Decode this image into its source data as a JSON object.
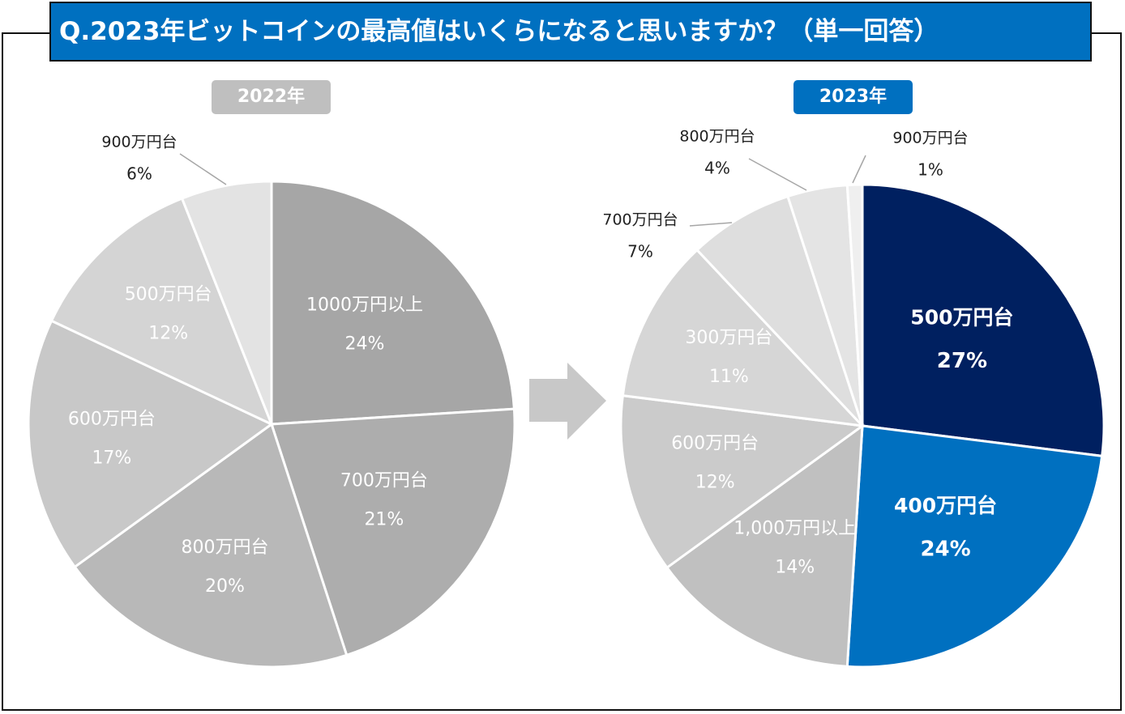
{
  "title": "Q.2023年ビットコインの最高値はいくらになると思いますか？（単一回答）",
  "chart_data": [
    {
      "type": "pie",
      "title": "2022年",
      "header_color": "#bfbfbf",
      "slices": [
        {
          "label": "1000万円以上",
          "value": 24,
          "value_label": "24%",
          "color": "#a6a6a6",
          "label_color": "#ffffff",
          "bold": false
        },
        {
          "label": "700万円台",
          "value": 21,
          "value_label": "21%",
          "color": "#adadad",
          "label_color": "#ffffff",
          "bold": false
        },
        {
          "label": "800万円台",
          "value": 20,
          "value_label": "20%",
          "color": "#b8b8b8",
          "label_color": "#ffffff",
          "bold": false
        },
        {
          "label": "600万円台",
          "value": 17,
          "value_label": "17%",
          "color": "#c8c8c8",
          "label_color": "#ffffff",
          "bold": false
        },
        {
          "label": "500万円台",
          "value": 12,
          "value_label": "12%",
          "color": "#d4d4d4",
          "label_color": "#ffffff",
          "bold": false
        },
        {
          "label": "900万円台",
          "value": 6,
          "value_label": "6%",
          "color": "#e3e3e3",
          "label_color": "#222222",
          "bold": false,
          "outside": true
        }
      ]
    },
    {
      "type": "pie",
      "title": "2023年",
      "header_color": "#0070c0",
      "slices": [
        {
          "label": "500万円台",
          "value": 27,
          "value_label": "27%",
          "color": "#002060",
          "label_color": "#ffffff",
          "bold": true
        },
        {
          "label": "400万円台",
          "value": 24,
          "value_label": "24%",
          "color": "#0070c0",
          "label_color": "#ffffff",
          "bold": true
        },
        {
          "label": "1,000万円以上",
          "value": 14,
          "value_label": "14%",
          "color": "#c0c0c0",
          "label_color": "#ffffff",
          "bold": false
        },
        {
          "label": "600万円台",
          "value": 12,
          "value_label": "12%",
          "color": "#cbcbcb",
          "label_color": "#ffffff",
          "bold": false
        },
        {
          "label": "300万円台",
          "value": 11,
          "value_label": "11%",
          "color": "#d6d6d6",
          "label_color": "#ffffff",
          "bold": false
        },
        {
          "label": "700万円台",
          "value": 7,
          "value_label": "7%",
          "color": "#dedede",
          "label_color": "#222222",
          "bold": false,
          "outside": true
        },
        {
          "label": "800万円台",
          "value": 4,
          "value_label": "4%",
          "color": "#e4e4e4",
          "label_color": "#222222",
          "bold": false,
          "outside": true
        },
        {
          "label": "900万円台",
          "value": 1,
          "value_label": "1%",
          "color": "#efefef",
          "label_color": "#222222",
          "bold": false,
          "outside": true
        }
      ]
    }
  ]
}
